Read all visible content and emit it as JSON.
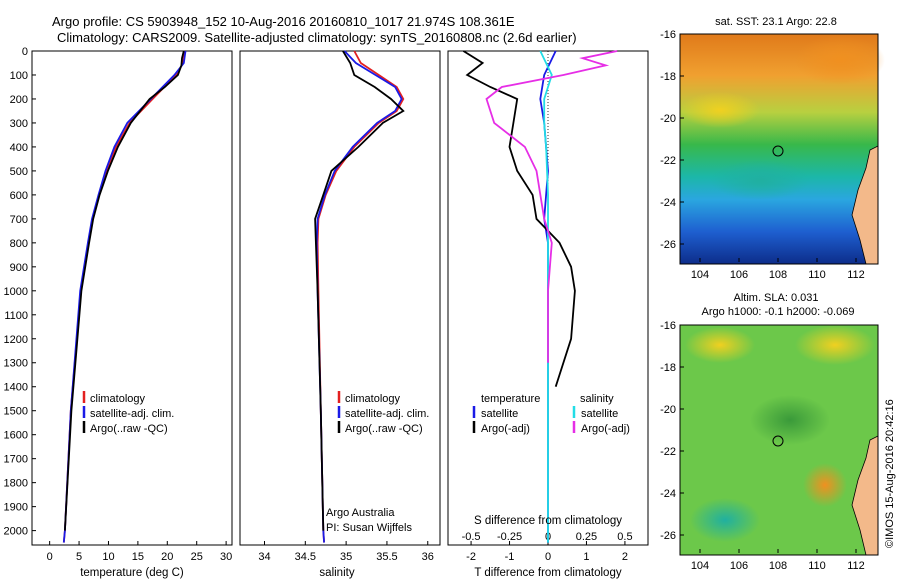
{
  "header": {
    "line1": "Argo profile: CS 5903948_152 10-Aug-2016 20160810_1017 21.974S 108.361E",
    "line2": "Climatology: CARS2009. Satellite-adjusted climatology: synTS_20160808.nc (2.6d earlier)"
  },
  "colors": {
    "climatology": "#e32020",
    "satellite": "#1a1ae6",
    "argo": "#000000",
    "sat_salinity": "#22dde6",
    "argo_salinity": "#e62ee6"
  },
  "chart_data": [
    {
      "type": "line",
      "xlabel": "temperature (deg C)",
      "xticks": [
        "0",
        "5",
        "10",
        "15",
        "20",
        "25",
        "30"
      ],
      "xlim": [
        -3,
        31
      ],
      "ylim": [
        2060,
        0
      ],
      "yticks": [
        "0",
        "100",
        "200",
        "300",
        "400",
        "500",
        "600",
        "700",
        "800",
        "900",
        "1000",
        "1100",
        "1200",
        "1300",
        "1400",
        "1500",
        "1600",
        "1700",
        "1800",
        "1900",
        "2000"
      ],
      "legend": [
        "climatology",
        "satellite-adj. clim.",
        "Argo(..raw -QC)"
      ],
      "series": [
        {
          "name": "climatology",
          "color": "#e32020",
          "depth": [
            0,
            50,
            100,
            200,
            300,
            400,
            500,
            600,
            700,
            800,
            1000,
            1500,
            2000,
            2050
          ],
          "values": [
            22.9,
            22.7,
            21.5,
            17.5,
            13.6,
            11.3,
            9.7,
            8.4,
            7.3,
            6.6,
            5.3,
            3.6,
            2.6,
            2.4
          ]
        },
        {
          "name": "satellite-adj. clim.",
          "color": "#1a1ae6",
          "depth": [
            0,
            50,
            100,
            200,
            300,
            400,
            500,
            600,
            700,
            800,
            1000,
            1500,
            2000,
            2050
          ],
          "values": [
            23.1,
            22.8,
            21.2,
            17.2,
            13.2,
            11.0,
            9.5,
            8.3,
            7.2,
            6.5,
            5.2,
            3.6,
            2.6,
            2.4
          ]
        },
        {
          "name": "Argo(..raw -QC)",
          "color": "#000000",
          "depth": [
            0,
            30,
            60,
            100,
            150,
            200,
            300,
            400,
            500,
            600,
            700,
            800,
            1000,
            1500,
            2000
          ],
          "values": [
            22.8,
            22.5,
            22.4,
            21.8,
            19.6,
            17.0,
            13.8,
            11.6,
            9.9,
            8.5,
            7.4,
            6.7,
            5.4,
            3.7,
            2.6
          ]
        }
      ]
    },
    {
      "type": "line",
      "xlabel": "salinity",
      "xticks": [
        "34",
        "34.5",
        "35",
        "35.5",
        "36"
      ],
      "xlim": [
        33.7,
        36.15
      ],
      "ylim": [
        2060,
        0
      ],
      "legend": [
        "climatology",
        "satellite-adj. clim.",
        "Argo(..raw -QC)"
      ],
      "annotation": [
        "Argo Australia",
        "PI: Susan Wijffels"
      ],
      "series": [
        {
          "name": "climatology",
          "color": "#e32020",
          "depth": [
            0,
            50,
            100,
            150,
            200,
            250,
            300,
            400,
            500,
            600,
            700,
            800,
            1000,
            1500,
            2000,
            2050
          ],
          "values": [
            35.1,
            35.18,
            35.4,
            35.62,
            35.7,
            35.62,
            35.4,
            35.1,
            34.88,
            34.75,
            34.66,
            34.65,
            34.66,
            34.69,
            34.72,
            34.73
          ]
        },
        {
          "name": "satellite-adj. clim.",
          "color": "#1a1ae6",
          "depth": [
            0,
            50,
            100,
            150,
            200,
            250,
            300,
            400,
            500,
            600,
            700,
            800,
            1000,
            1500,
            2000,
            2050
          ],
          "values": [
            34.98,
            35.12,
            35.36,
            35.6,
            35.68,
            35.6,
            35.38,
            35.08,
            34.86,
            34.74,
            34.65,
            34.64,
            34.65,
            34.69,
            34.72,
            34.73
          ]
        },
        {
          "name": "Argo(..raw -QC)",
          "color": "#000000",
          "depth": [
            0,
            50,
            100,
            150,
            200,
            250,
            300,
            400,
            500,
            600,
            700,
            800,
            1000,
            1500,
            2000
          ],
          "values": [
            34.96,
            35.05,
            35.1,
            35.35,
            35.55,
            35.7,
            35.45,
            35.15,
            34.82,
            34.72,
            34.62,
            34.63,
            34.65,
            34.69,
            34.72
          ]
        }
      ]
    },
    {
      "type": "line",
      "xlabel": "T difference from climatology",
      "xlabel2": "S difference from climatology",
      "xticks": [
        "-2",
        "-1",
        "0",
        "1",
        "2"
      ],
      "xticks_top": [
        "-0.5",
        "-0.25",
        "0",
        "0.25",
        "0.5"
      ],
      "xlim": [
        -2.6,
        2.6
      ],
      "ylim": [
        2060,
        0
      ],
      "legend_left": [
        "temperature",
        "satellite",
        "Argo(-adj)"
      ],
      "legend_right": [
        "salinity",
        "satellite",
        "Argo(-adj)"
      ],
      "series": [
        {
          "name": "satellite",
          "color": "#1a1ae6",
          "depth": [
            0,
            100,
            200,
            300,
            500,
            700,
            800,
            1000,
            1500,
            2050
          ],
          "values": [
            0.2,
            -0.1,
            -0.2,
            -0.1,
            0.0,
            -0.1,
            0.0,
            0.0,
            0.0,
            0.0
          ]
        },
        {
          "name": "Argo(-adj)",
          "color": "#000000",
          "depth": [
            0,
            50,
            100,
            150,
            200,
            300,
            400,
            500,
            600,
            700,
            800,
            900,
            1000,
            1200,
            1400
          ],
          "values": [
            -2.2,
            -1.7,
            -2.1,
            -1.5,
            -0.8,
            -0.9,
            -1.0,
            -0.8,
            -0.4,
            -0.3,
            0.3,
            0.6,
            0.7,
            0.6,
            0.2
          ]
        },
        {
          "name": "salinity satellite",
          "color": "#22dde6",
          "depth": [
            0,
            100,
            200,
            300,
            400,
            600,
            800,
            1000,
            1500,
            2050
          ],
          "values": [
            -0.2,
            0.1,
            -0.1,
            -0.1,
            -0.05,
            0.0,
            0.0,
            0.0,
            0.0,
            0.0
          ]
        },
        {
          "name": "salinity Argo(-adj)",
          "color": "#e62ee6",
          "depth": [
            0,
            30,
            60,
            100,
            150,
            200,
            300,
            400,
            500,
            700,
            800,
            1000,
            1300
          ],
          "values": [
            1.8,
            0.9,
            1.5,
            0.4,
            -1.2,
            -1.6,
            -1.4,
            -0.6,
            -0.3,
            -0.1,
            0.1,
            0.0,
            0.0
          ]
        }
      ]
    }
  ],
  "maps": {
    "sst": {
      "title": "sat. SST: 23.1  Argo: 22.8",
      "yticks": [
        "-16",
        "-18",
        "-20",
        "-22",
        "-24",
        "-26"
      ],
      "xticks": [
        "104",
        "106",
        "108",
        "110",
        "112"
      ]
    },
    "sla": {
      "title1": "Altim. SLA: 0.031",
      "title2": "Argo h1000: -0.1  h2000: -0.069",
      "yticks": [
        "-16",
        "-18",
        "-20",
        "-22",
        "-24",
        "-26"
      ],
      "xticks": [
        "104",
        "106",
        "108",
        "110",
        "112"
      ]
    }
  },
  "stamp": "©IMOS 15-Aug-2016 20:42:16"
}
